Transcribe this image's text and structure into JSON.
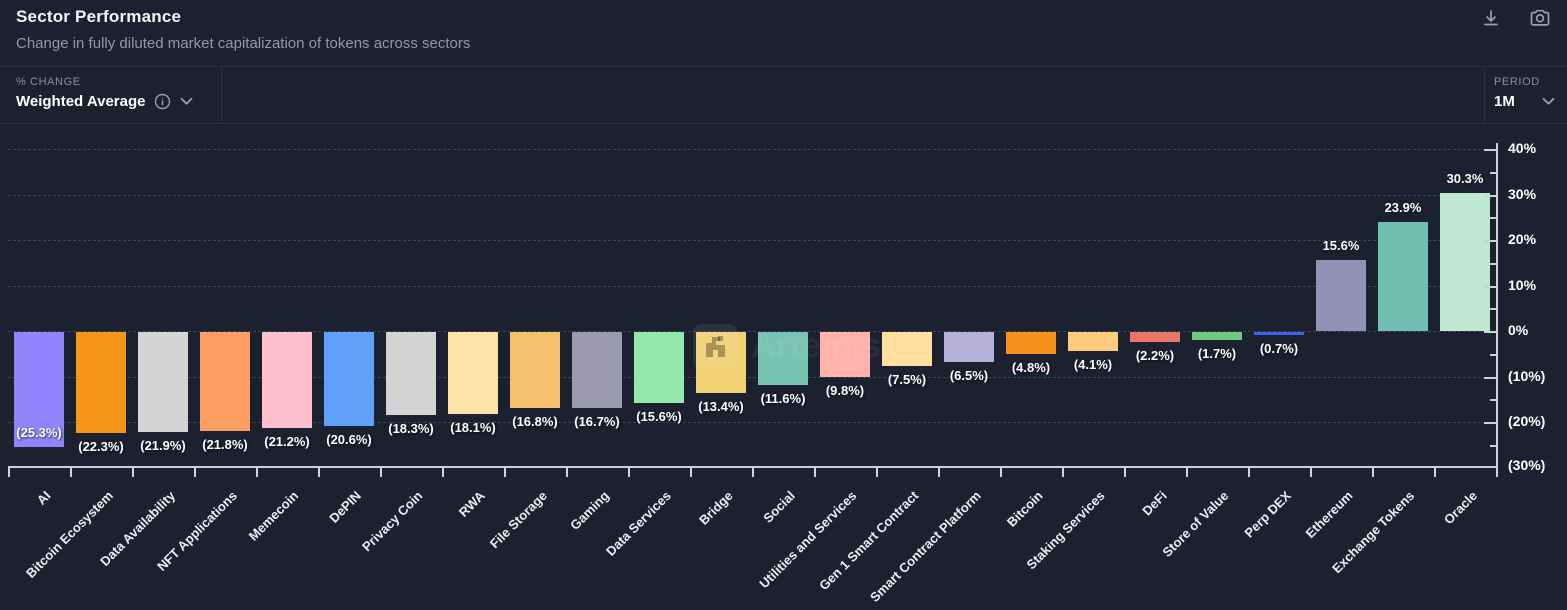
{
  "header": {
    "title": "Sector Performance",
    "subtitle": "Change in fully diluted market capitalization of tokens across sectors"
  },
  "toolbar": {
    "icons": [
      "download-icon",
      "camera-icon"
    ]
  },
  "controls": {
    "metric_label": "% CHANGE",
    "metric_value": "Weighted Average",
    "metric_icons": [
      "info-icon",
      "chevron-down-icon"
    ],
    "period_label": "PERIOD",
    "period_value": "1M",
    "period_icons": [
      "chevron-down-icon"
    ]
  },
  "watermark": "Artemis",
  "colors": {
    "background": "#1c212f",
    "border": "#2a3040",
    "gridline": "#3d4456",
    "axis": "#ced1d9",
    "title_text": "#f4f5f7",
    "muted_text": "#9299a7"
  },
  "chart_data": {
    "type": "bar",
    "title": "Sector Performance",
    "subtitle": "Change in fully diluted market capitalization of tokens across sectors",
    "period": "1M",
    "metric": "Weighted Average",
    "categories": [
      "AI",
      "Bitcoin Ecosystem",
      "Data Availability",
      "NFT Applications",
      "Memecoin",
      "DePIN",
      "Privacy Coin",
      "RWA",
      "File Storage",
      "Gaming",
      "Data Services",
      "Bridge",
      "Social",
      "Utilities and Services",
      "Gen 1 Smart Contract",
      "Smart Contract Platform",
      "Bitcoin",
      "Staking Services",
      "DeFi",
      "Store of Value",
      "Perp DEX",
      "Ethereum",
      "Exchange Tokens",
      "Oracle"
    ],
    "values": [
      -25.3,
      -22.3,
      -21.9,
      -21.8,
      -21.2,
      -20.6,
      -18.3,
      -18.1,
      -16.8,
      -16.7,
      -15.6,
      -13.4,
      -11.6,
      -9.8,
      -7.5,
      -6.5,
      -4.8,
      -4.1,
      -2.2,
      -1.7,
      -0.7,
      15.6,
      23.9,
      30.3
    ],
    "value_labels": [
      "(25.3%)",
      "(22.3%)",
      "(21.9%)",
      "(21.8%)",
      "(21.2%)",
      "(20.6%)",
      "(18.3%)",
      "(18.1%)",
      "(16.8%)",
      "(16.7%)",
      "(15.6%)",
      "(13.4%)",
      "(11.6%)",
      "(9.8%)",
      "(7.5%)",
      "(6.5%)",
      "(4.8%)",
      "(4.1%)",
      "(2.2%)",
      "(1.7%)",
      "(0.7%)",
      "15.6%",
      "23.9%",
      "30.3%"
    ],
    "bar_colors": [
      "#8d86fa",
      "#f7941a",
      "#d4d4d4",
      "#fd9e67",
      "#ffc0cd",
      "#61a0fb",
      "#d3d3d3",
      "#ffe2a8",
      "#f4c06c",
      "#9c9aae",
      "#93e9ab",
      "#f0d173",
      "#79c3b3",
      "#ffb3ac",
      "#ffde9e",
      "#b4b0d8",
      "#f6921b",
      "#fbcc7e",
      "#e9756c",
      "#70c97f",
      "#3d63e8",
      "#8f93b5",
      "#72bfb2",
      "#bfe9d2"
    ],
    "xlabel": "",
    "ylabel": "",
    "yaxis_position": "right",
    "ylim": [
      -30,
      40
    ],
    "ytick_step": 10,
    "ytick_labels": [
      "40%",
      "30%",
      "20%",
      "10%",
      "0%",
      "(10%)",
      "(20%)",
      "(30%)"
    ],
    "grid": "dashed-horizontal",
    "legend": "none",
    "value_label_format": "negatives in parentheses"
  }
}
